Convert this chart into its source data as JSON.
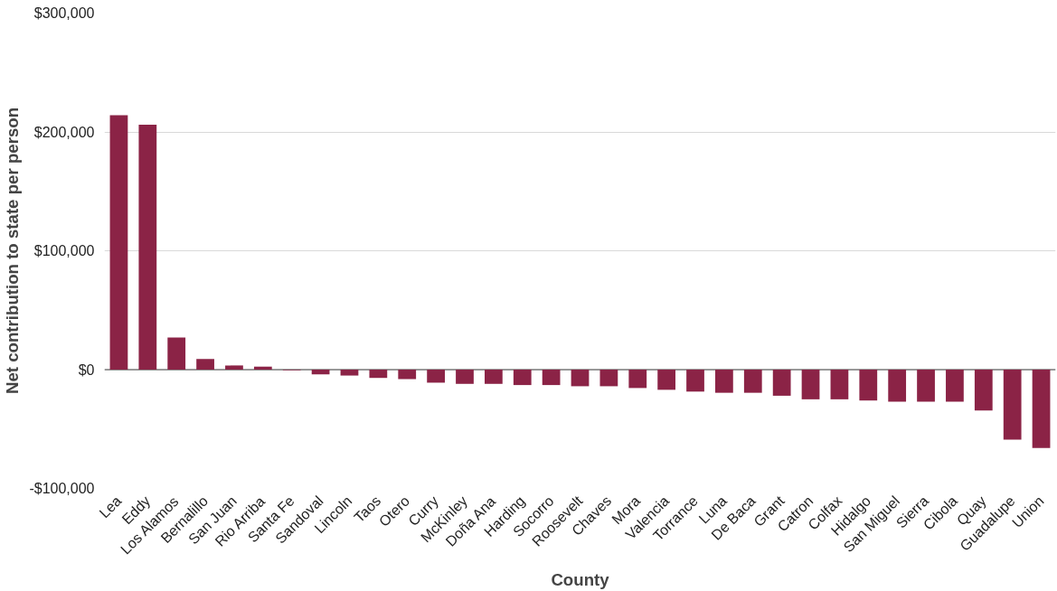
{
  "chart_data": {
    "type": "bar",
    "xlabel": "County",
    "ylabel": "Net contribution to state per person",
    "categories": [
      "Lea",
      "Eddy",
      "Los Alamos",
      "Bernalillo",
      "San Juan",
      "Rio Arriba",
      "Santa Fe",
      "Sandoval",
      "Lincoln",
      "Taos",
      "Otero",
      "Curry",
      "McKinley",
      "Doña Ana",
      "Harding",
      "Socorro",
      "Roosevelt",
      "Chaves",
      "Mora",
      "Valencia",
      "Torrance",
      "Luna",
      "De Baca",
      "Grant",
      "Catron",
      "Colfax",
      "Hidalgo",
      "San Miguel",
      "Sierra",
      "Cibola",
      "Quay",
      "Guadalupe",
      "Union"
    ],
    "values": [
      214000,
      206000,
      27000,
      9000,
      3500,
      2500,
      -500,
      -4000,
      -5000,
      -7000,
      -8000,
      -11000,
      -12000,
      -12000,
      -13000,
      -13000,
      -14000,
      -14000,
      -15500,
      -17000,
      -18500,
      -19500,
      -19500,
      -22000,
      -25000,
      -25000,
      -26000,
      -27000,
      -27000,
      -27000,
      -34500,
      -59000,
      -66000
    ],
    "color": "#8b2346",
    "ylim": [
      -100000,
      300000
    ],
    "yticks": [
      {
        "value": -100000,
        "label": "-$100,000"
      },
      {
        "value": 0,
        "label": "$0"
      },
      {
        "value": 100000,
        "label": "$100,000"
      },
      {
        "value": 200000,
        "label": "$200,000"
      },
      {
        "value": 300000,
        "label": "$300,000"
      }
    ],
    "grid": "y",
    "ref_lines": [
      {
        "axis": "y",
        "value": 0,
        "color": "#444444"
      }
    ]
  }
}
